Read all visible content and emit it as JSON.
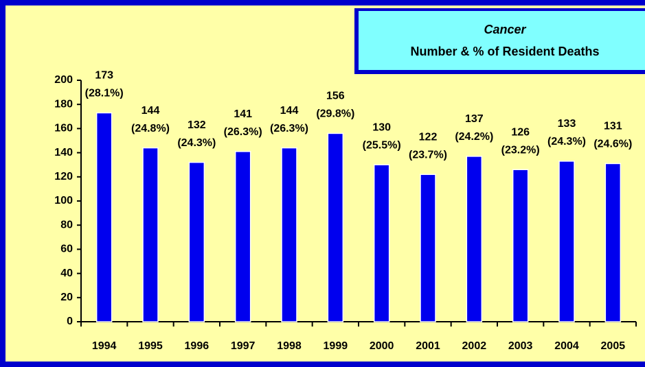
{
  "chart_data": {
    "type": "bar",
    "title": "Cancer",
    "subtitle": "Number & % of Resident Deaths",
    "categories": [
      "1994",
      "1995",
      "1996",
      "1997",
      "1998",
      "1999",
      "2000",
      "2001",
      "2002",
      "2003",
      "2004",
      "2005"
    ],
    "values": [
      173,
      144,
      132,
      141,
      144,
      156,
      130,
      122,
      137,
      126,
      133,
      131
    ],
    "percent_labels": [
      "(28.1%)",
      "(24.8%)",
      "(24.3%)",
      "(26.3%)",
      "(26.3%)",
      "(29.8%)",
      "(25.5%)",
      "(23.7%)",
      "(24.2%)",
      "(23.2%)",
      "(24.3%)",
      "(24.6%)"
    ],
    "color": "#0000ee",
    "ylim": [
      0,
      200
    ],
    "yticks": [
      0,
      20,
      40,
      60,
      80,
      100,
      120,
      140,
      160,
      180,
      200
    ]
  }
}
